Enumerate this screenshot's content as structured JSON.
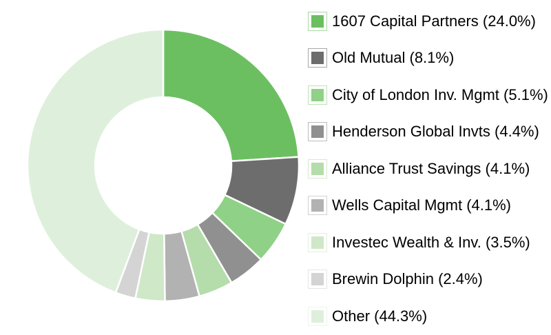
{
  "chart_data": {
    "type": "pie",
    "subtype": "donut",
    "direction": "clockwise",
    "start_angle_deg": 0,
    "inner_radius_ratio": 0.5,
    "slice_border_color": "#ffffff",
    "background": "#ffffff",
    "legend_position": "right",
    "series": [
      {
        "label": "1607 Capital Partners",
        "value": 24.0,
        "color": "#6CBF61",
        "legend_label": "1607 Capital Partners (24.0%)"
      },
      {
        "label": "Old Mutual",
        "value": 8.1,
        "color": "#6D6D6D",
        "legend_label": "Old Mutual (8.1%)"
      },
      {
        "label": "City of London Inv. Mgmt",
        "value": 5.1,
        "color": "#8FD186",
        "legend_label": "City of London Inv. Mgmt (5.1%)"
      },
      {
        "label": "Henderson Global Invts",
        "value": 4.4,
        "color": "#909090",
        "legend_label": "Henderson Global Invts (4.4%)"
      },
      {
        "label": "Alliance Trust Savings",
        "value": 4.1,
        "color": "#B5DCAB",
        "legend_label": "Alliance Trust Savings (4.1%)"
      },
      {
        "label": "Wells Capital Mgmt",
        "value": 4.1,
        "color": "#B2B2B2",
        "legend_label": "Wells Capital Mgmt (4.1%)"
      },
      {
        "label": "Investec Wealth & Inv.",
        "value": 3.5,
        "color": "#CFE8C8",
        "legend_label": "Investec Wealth & Inv. (3.5%)"
      },
      {
        "label": "Brewin Dolphin",
        "value": 2.4,
        "color": "#D4D4D4",
        "legend_label": "Brewin Dolphin (2.4%)"
      },
      {
        "label": "Other",
        "value": 44.3,
        "color": "#DEF0DC",
        "legend_label": "Other (44.3%)"
      }
    ]
  }
}
